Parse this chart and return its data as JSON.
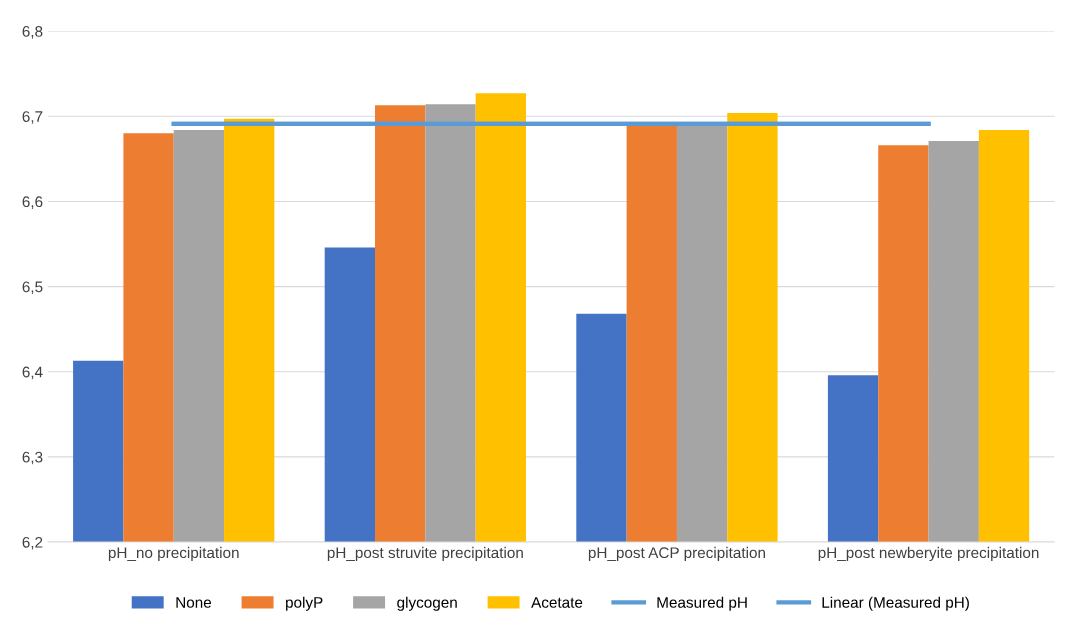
{
  "chart_data": {
    "type": "bar",
    "categories": [
      "pH_no precipitation",
      "pH_post struvite precipitation",
      "pH_post ACP precipitation",
      "pH_post newberyite precipitation"
    ],
    "series": [
      {
        "name": "None",
        "color": "#4472c4",
        "values": [
          6.413,
          6.546,
          6.468,
          6.396
        ]
      },
      {
        "name": "polyP",
        "color": "#ed7d31",
        "values": [
          6.68,
          6.713,
          6.69,
          6.666
        ]
      },
      {
        "name": "glycogen",
        "color": "#a5a5a5",
        "values": [
          6.684,
          6.714,
          6.692,
          6.671
        ]
      },
      {
        "name": "Acetate",
        "color": "#ffc000",
        "values": [
          6.697,
          6.727,
          6.704,
          6.684
        ]
      },
      {
        "name": "Measured pH",
        "type": "line",
        "color": "#5b9bd5",
        "values": [
          6.691,
          6.691,
          6.691,
          6.691
        ]
      },
      {
        "name": "Linear (Measured pH)",
        "type": "line",
        "color": "#5b9bd5",
        "values": [
          6.691,
          6.691,
          6.691,
          6.691
        ]
      }
    ],
    "ylim": [
      6.2,
      6.8
    ],
    "yticks": [
      {
        "value": 6.2,
        "label": "6,2"
      },
      {
        "value": 6.3,
        "label": "6,3"
      },
      {
        "value": 6.4,
        "label": "6,4"
      },
      {
        "value": 6.5,
        "label": "6,5"
      },
      {
        "value": 6.6,
        "label": "6,6"
      },
      {
        "value": 6.7,
        "label": "6,7"
      },
      {
        "value": 6.8,
        "label": "6,8"
      }
    ],
    "grid": "y",
    "legend": "bottom"
  }
}
